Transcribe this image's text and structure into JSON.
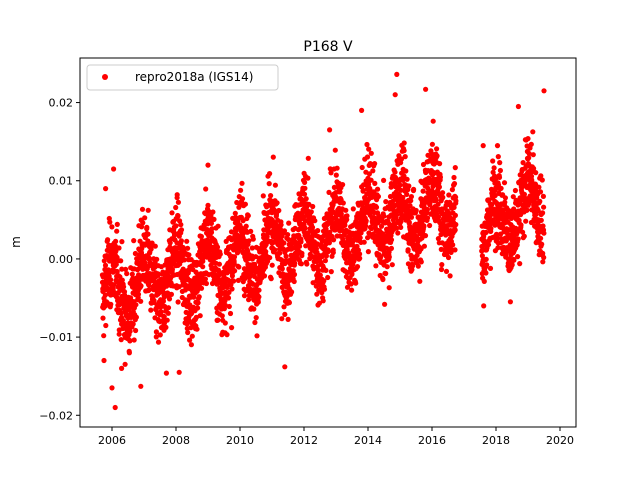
{
  "chart_data": {
    "type": "scatter",
    "title": "P168 V",
    "xlabel": "",
    "ylabel": "m",
    "xlim": [
      2005.0,
      2020.5
    ],
    "ylim": [
      -0.0215,
      0.0257
    ],
    "xticks": [
      2006,
      2008,
      2010,
      2012,
      2014,
      2016,
      2018,
      2020
    ],
    "xtick_labels": [
      "2006",
      "2008",
      "2010",
      "2012",
      "2014",
      "2016",
      "2018",
      "2020"
    ],
    "yticks": [
      -0.02,
      -0.01,
      0.0,
      0.01,
      0.02
    ],
    "ytick_labels": [
      "−0.02",
      "−0.01",
      "0.00",
      "0.01",
      "0.02"
    ],
    "grid": false,
    "legend_position": "top-left",
    "series": [
      {
        "name": "repro2018a (IGS14)",
        "color": "#ff0000",
        "marker": "circle",
        "trend": {
          "x": [
            2005.7,
            2016.8
          ],
          "y": [
            -0.0045,
            0.0075
          ]
        },
        "sample_points": {
          "x": [
            2005.8,
            2006.0,
            2006.1,
            2006.3,
            2006.9,
            2007.7,
            2008.1,
            2009.0,
            2011.4,
            2012.8,
            2013.8,
            2014.9,
            2015.8,
            2017.6,
            2018.7,
            2019.5,
            2005.75,
            2006.05,
            2014.85
          ],
          "y": [
            0.009,
            -0.0165,
            -0.019,
            -0.014,
            -0.0163,
            -0.0146,
            -0.0145,
            0.012,
            -0.0138,
            0.0165,
            0.019,
            0.0236,
            0.0217,
            0.0145,
            0.0195,
            0.0215,
            -0.013,
            0.0115,
            0.021
          ]
        },
        "gaps": [
          [
            2016.75,
            2017.55
          ]
        ],
        "date_range": [
          2005.7,
          2019.5
        ]
      }
    ]
  }
}
